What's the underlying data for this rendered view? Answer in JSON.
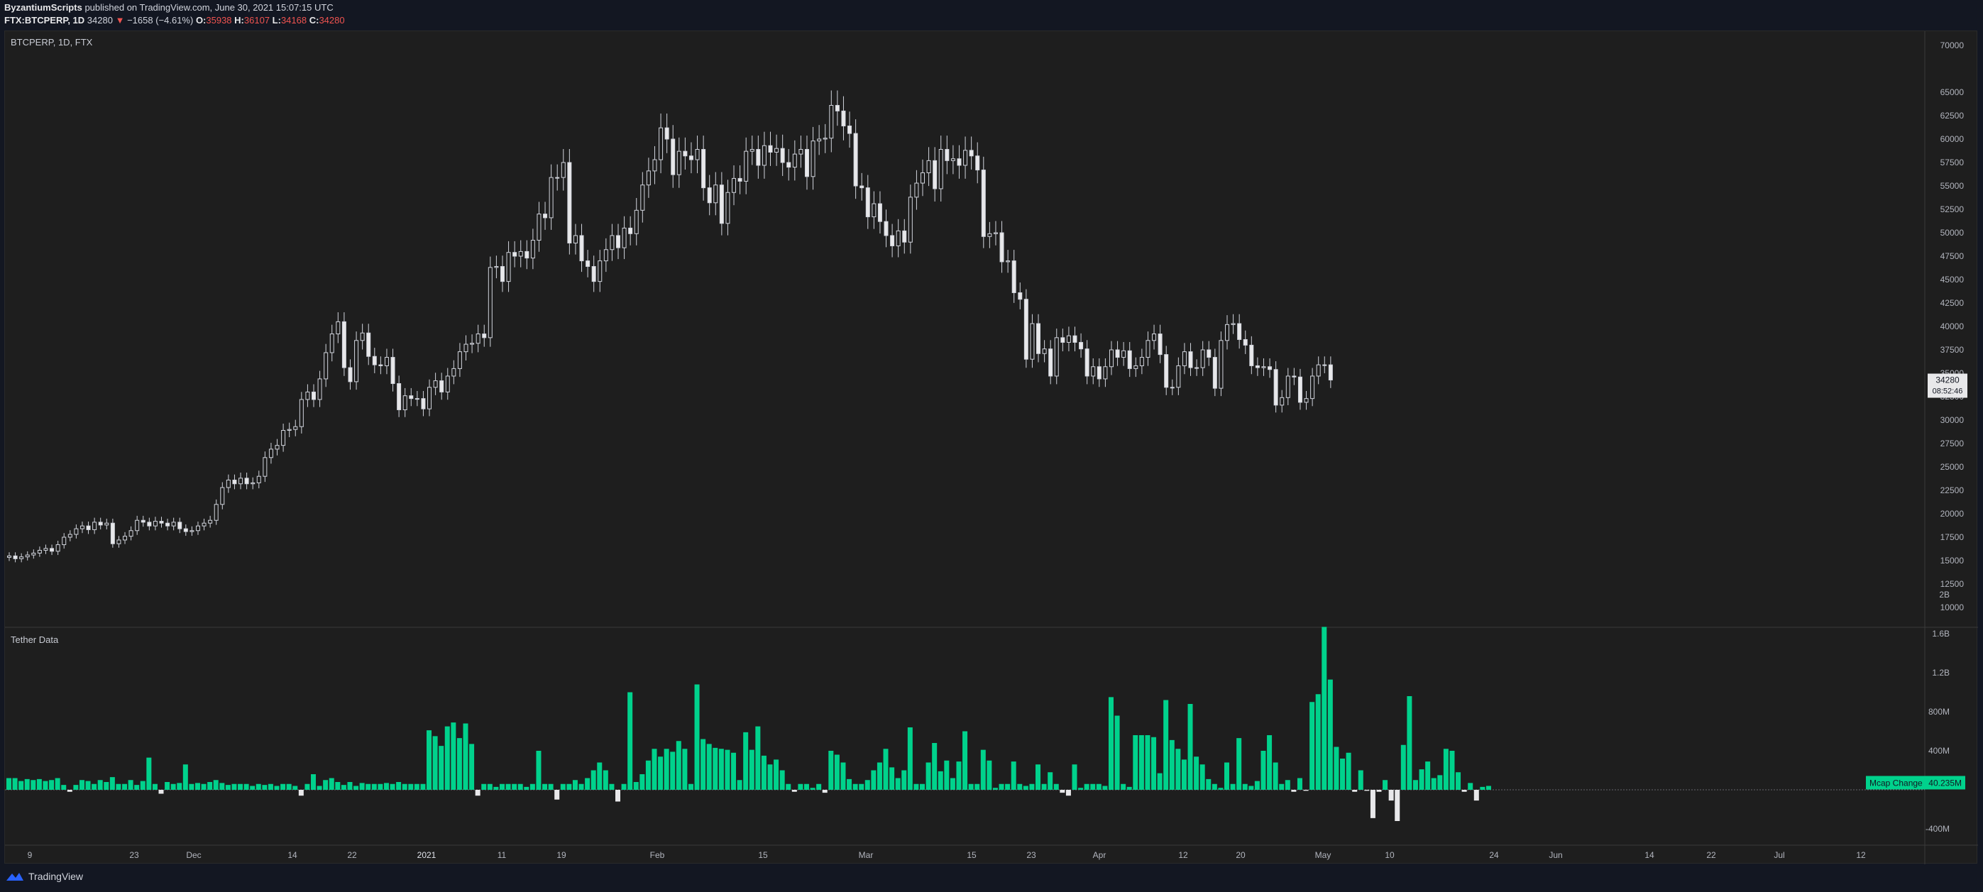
{
  "header": {
    "author": "ByzantiumScripts",
    "published_text": "published on TradingView.com, June 30, 2021 15:07:15 UTC",
    "symbol_line": "FTX:BTCPERP, 1D",
    "last": "34280",
    "change": "−1658 (−4.61%)",
    "o_label": "O:",
    "o": "35938",
    "h_label": "H:",
    "h": "36107",
    "l_label": "L:",
    "l": "34168",
    "c_label": "C:",
    "c": "34280"
  },
  "footer": {
    "brand": "TradingView"
  },
  "colors": {
    "background": "#131722",
    "pane": "#1e1e1e",
    "up_body": "#1e1e1e",
    "down_body": "#e8e8ea",
    "wick": "#d1d4dc",
    "volume_up": "#00d28c",
    "volume_down": "#e8e8ea",
    "label_green": "#00d28c"
  },
  "chart_data": {
    "type": "candlestick",
    "title": "BTCPERP, 1D, FTX",
    "price_axis": {
      "ticks": [
        "70000",
        "65000",
        "62500",
        "60000",
        "57500",
        "55000",
        "52500",
        "50000",
        "47500",
        "45000",
        "42500",
        "40000",
        "37500",
        "35000",
        "32500",
        "30000",
        "27500",
        "25000",
        "22500",
        "20000",
        "17500",
        "15000",
        "12500",
        "10000"
      ]
    },
    "last_price_label": "34280",
    "countdown_label": "08:52:46",
    "date_axis": {
      "ticks": [
        "9",
        "23",
        "Dec",
        "14",
        "22",
        "2021",
        "11",
        "19",
        "Feb",
        "15",
        "Mar",
        "15",
        "23",
        "Apr",
        "12",
        "20",
        "May",
        "10",
        "24",
        "Jun",
        "14",
        "22",
        "Jul",
        "12"
      ]
    },
    "closes": [
      15500,
      15200,
      15400,
      15600,
      15800,
      16100,
      16300,
      16000,
      16700,
      17500,
      17800,
      18400,
      18700,
      18300,
      19100,
      18800,
      19000,
      16800,
      17200,
      17600,
      18200,
      19300,
      19100,
      18700,
      19200,
      19000,
      18700,
      19100,
      18400,
      18100,
      18200,
      18700,
      19000,
      19300,
      21000,
      22800,
      23600,
      23200,
      23800,
      23200,
      23300,
      24000,
      26000,
      26900,
      27300,
      28900,
      29000,
      29300,
      32200,
      33000,
      32200,
      34400,
      37200,
      39200,
      40500,
      35600,
      34100,
      38500,
      39300,
      36800,
      35900,
      35800,
      36700,
      33900,
      31100,
      32600,
      32300,
      32300,
      31200,
      33500,
      34200,
      33000,
      34700,
      35500,
      37300,
      38100,
      38200,
      39200,
      38800,
      46300,
      46400,
      44800,
      47900,
      47500,
      48000,
      47300,
      49200,
      52000,
      51600,
      55900,
      55900,
      57500,
      48900,
      49700,
      47000,
      46400,
      44800,
      47000,
      48200,
      49700,
      48400,
      50500,
      49900,
      52400,
      55100,
      56600,
      57800,
      61200,
      60000,
      56200,
      58700,
      58200,
      57800,
      58900,
      54800,
      53200,
      55100,
      51000,
      54300,
      55800,
      55500,
      58700,
      58900,
      57200,
      59300,
      58600,
      59000,
      57500,
      57000,
      58400,
      58900,
      56000,
      59800,
      60000,
      60100,
      63600,
      63000,
      61400,
      60600,
      55000,
      54800,
      51700,
      53100,
      51200,
      49700,
      48600,
      50200,
      49000,
      53800,
      55300,
      56400,
      57700,
      54700,
      58900,
      57700,
      57900,
      57200,
      58800,
      58200,
      56700,
      49600,
      49900,
      50000,
      46900,
      47000,
      43600,
      42900,
      36500,
      40300,
      37100,
      37600,
      34700,
      38800,
      38300,
      39000,
      38300,
      37600,
      34700,
      35700,
      34400,
      35700,
      37500,
      36700,
      37400,
      35500,
      35800,
      36700,
      38500,
      39200,
      37000,
      33500,
      33500,
      35800,
      37300,
      35600,
      35600,
      37500,
      36700,
      33400,
      38500,
      40200,
      40300,
      38600,
      38000,
      35800,
      35600,
      35700,
      35400,
      31600,
      32400,
      34700,
      34600,
      31900,
      32300,
      34700,
      35900,
      35900,
      34280
    ],
    "tether_series": {
      "name": "Tether Data",
      "label": "Mcap Change",
      "last_value_label": "40.235M",
      "axis_ticks": [
        "2B",
        "1.6B",
        "1.2B",
        "800M",
        "400M",
        "-400M"
      ],
      "values": [
        120,
        120,
        90,
        110,
        100,
        110,
        90,
        100,
        120,
        50,
        -20,
        50,
        100,
        90,
        60,
        100,
        80,
        130,
        60,
        60,
        100,
        50,
        90,
        330,
        60,
        -40,
        80,
        60,
        70,
        260,
        60,
        70,
        60,
        80,
        100,
        70,
        50,
        60,
        60,
        60,
        40,
        60,
        50,
        60,
        40,
        60,
        60,
        40,
        -60,
        60,
        160,
        40,
        100,
        120,
        80,
        50,
        80,
        40,
        70,
        60,
        60,
        60,
        70,
        60,
        80,
        60,
        60,
        60,
        60,
        610,
        550,
        450,
        650,
        690,
        530,
        680,
        470,
        -60,
        60,
        60,
        30,
        60,
        60,
        60,
        60,
        30,
        60,
        400,
        60,
        60,
        -100,
        60,
        60,
        100,
        60,
        120,
        200,
        280,
        200,
        60,
        -120,
        60,
        1000,
        80,
        160,
        300,
        420,
        340,
        420,
        390,
        500,
        420,
        60,
        1080,
        520,
        470,
        430,
        420,
        410,
        380,
        100,
        590,
        410,
        650,
        350,
        260,
        310,
        200,
        60,
        -20,
        60,
        60,
        20,
        60,
        -30,
        400,
        360,
        280,
        110,
        60,
        60,
        100,
        200,
        280,
        420,
        230,
        120,
        200,
        640,
        60,
        60,
        280,
        480,
        190,
        300,
        120,
        290,
        600,
        60,
        60,
        410,
        300,
        20,
        60,
        60,
        290,
        60,
        40,
        60,
        260,
        60,
        180,
        60,
        -30,
        -60,
        260,
        20,
        60,
        60,
        60,
        40,
        950,
        760,
        60,
        30,
        560,
        560,
        560,
        540,
        170,
        920,
        510,
        420,
        310,
        880,
        340,
        260,
        110,
        60,
        20,
        280,
        60,
        530,
        60,
        40,
        90,
        400,
        560,
        280,
        60,
        100,
        -20,
        120,
        -10,
        900,
        980,
        1670,
        1130,
        440,
        320,
        380,
        -20,
        200,
        -10,
        -290,
        -20,
        100,
        -110,
        -320,
        460,
        960,
        100,
        210,
        290,
        120,
        150,
        420,
        400,
        180,
        -20,
        70,
        -110,
        30,
        40
      ],
      "up_color": "#00d28c",
      "down_color": "#e8e8ea"
    }
  }
}
